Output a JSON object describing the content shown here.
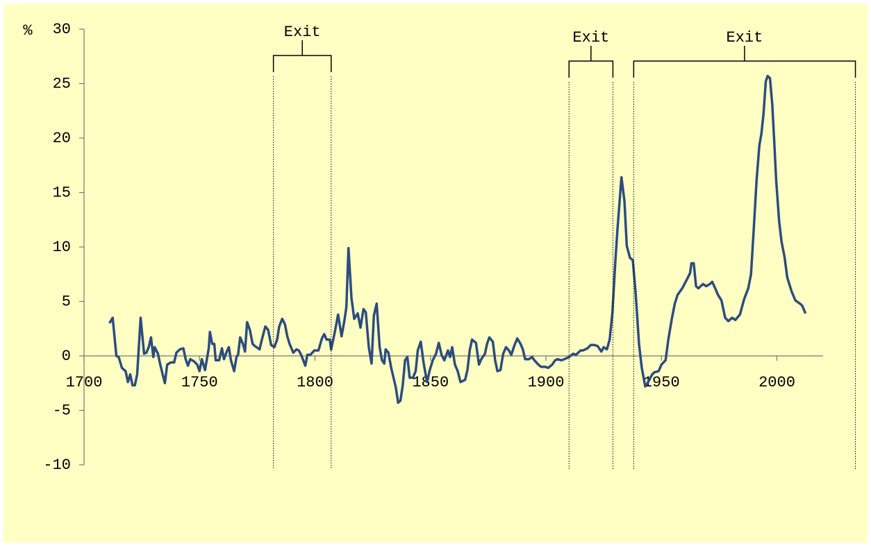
{
  "chart_data": {
    "type": "line",
    "y_label": "%",
    "color": "#2b4c7e",
    "xlim": [
      1700,
      2020
    ],
    "xticks": [
      1700,
      1750,
      1800,
      1850,
      1900,
      1950,
      2000
    ],
    "ylim": [
      -10,
      30
    ],
    "yticks": [
      -10,
      -5,
      0,
      5,
      10,
      15,
      20,
      25,
      30
    ],
    "x": [
      1711,
      1712.4,
      1714,
      1715,
      1716.4,
      1718,
      1719,
      1720,
      1721,
      1722,
      1723,
      1724.5,
      1726,
      1727,
      1728,
      1729,
      1730,
      1730.6,
      1732,
      1733,
      1735,
      1736,
      1737.6,
      1739,
      1740,
      1741.5,
      1743,
      1744,
      1745,
      1746,
      1747.6,
      1749,
      1750,
      1751,
      1752.4,
      1754,
      1754.5,
      1755.5,
      1756.4,
      1757,
      1758.5,
      1759.7,
      1760.6,
      1762,
      1762.7,
      1763.6,
      1765,
      1766,
      1766.7,
      1767.6,
      1768.8,
      1769.7,
      1770.6,
      1771.8,
      1773,
      1774,
      1776,
      1777,
      1778.5,
      1779.7,
      1781,
      1782.4,
      1783.6,
      1784.5,
      1785.8,
      1787,
      1788,
      1789,
      1790.6,
      1792,
      1793,
      1794,
      1795.8,
      1796.7,
      1798,
      1799.7,
      1801.5,
      1803,
      1804,
      1805,
      1806.4,
      1807,
      1808.5,
      1810,
      1811.5,
      1812.7,
      1813.6,
      1814.5,
      1815.8,
      1817,
      1818.5,
      1819.7,
      1821,
      1822,
      1823.3,
      1824.5,
      1825.5,
      1826.7,
      1828,
      1829,
      1830,
      1830.6,
      1831.8,
      1833,
      1834,
      1835,
      1836,
      1837,
      1838,
      1839,
      1840,
      1841,
      1842.4,
      1843.6,
      1844.5,
      1845.8,
      1847,
      1848.5,
      1849.7,
      1851,
      1852.4,
      1853.6,
      1854.8,
      1856,
      1857.6,
      1858.5,
      1859.4,
      1860.6,
      1861.8,
      1863,
      1865,
      1866,
      1867,
      1868,
      1869.7,
      1871,
      1872,
      1873.6,
      1874.5,
      1875.5,
      1877,
      1878,
      1879,
      1880.3,
      1881.5,
      1882.7,
      1884,
      1885,
      1886.4,
      1887.6,
      1889,
      1890,
      1891,
      1892.7,
      1894,
      1895,
      1896.7,
      1897.9,
      1899.7,
      1901,
      1902.7,
      1904,
      1905,
      1906.7,
      1908,
      1910,
      1911.8,
      1913,
      1915,
      1916,
      1918,
      1919.4,
      1921,
      1922.4,
      1924,
      1925,
      1926.4,
      1927.6,
      1928.8,
      1930,
      1931,
      1932.7,
      1934,
      1935,
      1936.4,
      1937.6,
      1938.8,
      1940.3,
      1941.5,
      1943,
      1944,
      1946,
      1947,
      1948.8,
      1950,
      1951.8,
      1953,
      1954.5,
      1955.8,
      1957,
      1959,
      1961,
      1962.4,
      1963,
      1964,
      1965,
      1966,
      1968,
      1969.4,
      1971,
      1972,
      1973.3,
      1974.5,
      1976,
      1977.6,
      1979,
      1980.6,
      1982,
      1984,
      1985.8,
      1987.6,
      1988.8,
      1990,
      1991.2,
      1992.4,
      1993.3,
      1994.2,
      1995.2,
      1996,
      1997,
      1998,
      1998.8,
      1999.7,
      2001,
      2002,
      2003.3,
      2004.5,
      2006.4,
      2008,
      2010,
      2011,
      2012.4
    ],
    "values": [
      3.0,
      3.5,
      0,
      -0.1,
      -1.1,
      -1.4,
      -2.4,
      -1.7,
      -2.7,
      -2.7,
      -1.7,
      3.5,
      0.2,
      0.3,
      0.8,
      1.7,
      -0.1,
      0.8,
      0.2,
      -0.8,
      -2.5,
      -0.8,
      -0.6,
      -0.6,
      0.3,
      0.6,
      0.7,
      -0.3,
      -0.9,
      -0.3,
      -0.5,
      -0.8,
      -1.4,
      -0.3,
      -1.3,
      0.7,
      2.2,
      1.1,
      1.1,
      -0.4,
      -0.4,
      0.7,
      -0.3,
      0.5,
      0.8,
      -0.4,
      -1.4,
      -0.1,
      0.1,
      1.7,
      1.1,
      0.4,
      3.1,
      2.4,
      1.1,
      0.9,
      0.6,
      1.5,
      2.7,
      2.4,
      1.0,
      0.8,
      1.5,
      2.7,
      3.4,
      2.9,
      1.8,
      1.1,
      0.3,
      0.6,
      0.5,
      0.1,
      -0.9,
      0.1,
      0.1,
      0.5,
      0.5,
      1.6,
      2.0,
      1.5,
      1.5,
      0.6,
      2.1,
      3.8,
      1.8,
      3.2,
      4.5,
      9.9,
      5.3,
      3.4,
      3.9,
      2.6,
      4.3,
      4.0,
      0.8,
      -0.7,
      3.7,
      4.8,
      0.8,
      -0.4,
      -0.7,
      0.6,
      0.3,
      -1.1,
      -2.0,
      -2.9,
      -4.3,
      -4.1,
      -2.7,
      -0.4,
      -0.1,
      -2.0,
      -2.0,
      -1.4,
      0.5,
      1.3,
      -0.6,
      -2.4,
      -1.3,
      -0.4,
      0.2,
      1.2,
      0.1,
      -0.4,
      0.5,
      -0.1,
      0.8,
      -0.8,
      -1.4,
      -2.4,
      -2.2,
      -1.3,
      0.5,
      1.5,
      1.2,
      -0.8,
      -0.3,
      0.2,
      1.1,
      1.7,
      1.3,
      -0.4,
      -1.4,
      -1.3,
      0.2,
      0.8,
      0.5,
      0.1,
      1.0,
      1.6,
      1.1,
      0.6,
      -0.3,
      -0.3,
      -0.1,
      -0.4,
      -0.8,
      -1.0,
      -1.0,
      -1.1,
      -0.8,
      -0.4,
      -0.3,
      -0.4,
      -0.3,
      -0.1,
      0.2,
      0.1,
      0.5,
      0.5,
      0.7,
      1.0,
      1.0,
      0.9,
      0.4,
      0.8,
      0.6,
      1.5,
      4.0,
      8.5,
      11.7,
      16.4,
      14.2,
      10.1,
      9.0,
      8.8,
      5.9,
      1.1,
      -1.1,
      -2.8,
      -2.5,
      -1.7,
      -1.5,
      -1.4,
      -0.8,
      -0.4,
      1.5,
      3.4,
      4.8,
      5.6,
      6.2,
      7.0,
      7.6,
      8.5,
      8.5,
      6.4,
      6.2,
      6.6,
      6.4,
      6.6,
      6.8,
      6.2,
      5.6,
      5.1,
      3.5,
      3.2,
      3.5,
      3.3,
      3.8,
      5.2,
      6.2,
      7.5,
      11.7,
      16.1,
      19.3,
      20.4,
      22.2,
      25.2,
      25.7,
      25.5,
      23.1,
      19.9,
      16.1,
      12.3,
      10.5,
      9.1,
      7.2,
      5.9,
      5.1,
      4.8,
      4.6,
      3.9
    ],
    "annotations": [
      {
        "text": "Exit",
        "x": [
          1782,
          1807
        ]
      },
      {
        "text": "Exit",
        "x": [
          1910,
          1929
        ]
      },
      {
        "text": "Exit",
        "x": [
          1938,
          2034
        ]
      }
    ]
  }
}
